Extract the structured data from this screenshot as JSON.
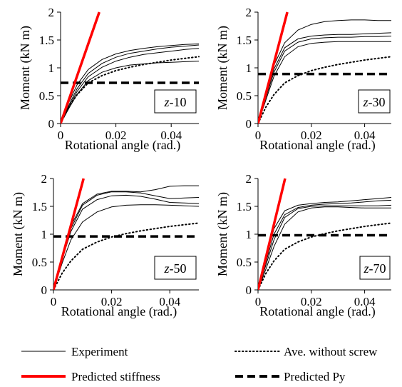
{
  "chart_data": [
    {
      "type": "line",
      "panel_label": "z-10",
      "xlabel": "Rotational angle (rad.)",
      "ylabel": "Moment (kN m)",
      "xlim": [
        0,
        0.05
      ],
      "ylim": [
        0,
        2
      ],
      "x_ticks": [
        "0",
        "0.02",
        "0.04"
      ],
      "y_ticks": [
        "0",
        "0.5",
        "1",
        "1.5",
        "2"
      ],
      "grid": false,
      "predicted_stiffness_slope": 143,
      "predicted_py": 0.73,
      "series": [
        {
          "name": "Experiment",
          "style": "thin",
          "x": [
            0,
            0.003,
            0.006,
            0.01,
            0.015,
            0.02,
            0.025,
            0.03,
            0.035,
            0.04,
            0.045,
            0.05
          ],
          "y": [
            0,
            0.38,
            0.7,
            0.97,
            1.15,
            1.25,
            1.31,
            1.35,
            1.38,
            1.4,
            1.42,
            1.43
          ]
        },
        {
          "name": "Experiment",
          "style": "thin",
          "x": [
            0,
            0.003,
            0.006,
            0.01,
            0.015,
            0.02,
            0.025,
            0.03,
            0.035,
            0.04,
            0.045,
            0.05
          ],
          "y": [
            0,
            0.33,
            0.63,
            0.9,
            1.08,
            1.19,
            1.26,
            1.3,
            1.34,
            1.37,
            1.39,
            1.41
          ]
        },
        {
          "name": "Experiment",
          "style": "thin",
          "x": [
            0,
            0.003,
            0.006,
            0.01,
            0.015,
            0.02,
            0.025,
            0.03,
            0.035,
            0.04,
            0.045,
            0.05
          ],
          "y": [
            0,
            0.3,
            0.58,
            0.84,
            1.01,
            1.12,
            1.19,
            1.24,
            1.27,
            1.3,
            1.33,
            1.35
          ]
        },
        {
          "name": "Experiment",
          "style": "thin",
          "x": [
            0,
            0.003,
            0.006,
            0.01,
            0.015,
            0.02,
            0.025,
            0.03,
            0.035,
            0.04,
            0.045,
            0.05
          ],
          "y": [
            0,
            0.27,
            0.53,
            0.77,
            0.92,
            1.0,
            1.05,
            1.07,
            1.09,
            1.1,
            1.11,
            1.12
          ]
        },
        {
          "name": "Ave. without screw",
          "style": "dotted",
          "x": [
            0,
            0.003,
            0.006,
            0.01,
            0.015,
            0.02,
            0.025,
            0.03,
            0.035,
            0.04,
            0.045,
            0.05
          ],
          "y": [
            0,
            0.3,
            0.52,
            0.73,
            0.86,
            0.95,
            1.01,
            1.06,
            1.1,
            1.14,
            1.17,
            1.2
          ]
        }
      ]
    },
    {
      "type": "line",
      "panel_label": "z-30",
      "xlabel": "Rotational angle (rad.)",
      "ylabel": "Moment (kN m)",
      "xlim": [
        0,
        0.05
      ],
      "ylim": [
        0,
        2
      ],
      "x_ticks": [
        "0",
        "0.02",
        "0.04"
      ],
      "y_ticks": [
        "0",
        "0.5",
        "1",
        "1.5",
        "2"
      ],
      "grid": false,
      "predicted_stiffness_slope": 182,
      "predicted_py": 0.89,
      "series": [
        {
          "name": "Experiment",
          "style": "thin",
          "x": [
            0,
            0.003,
            0.006,
            0.01,
            0.015,
            0.02,
            0.025,
            0.03,
            0.035,
            0.04,
            0.045,
            0.05
          ],
          "y": [
            0,
            0.55,
            1.05,
            1.45,
            1.68,
            1.78,
            1.83,
            1.85,
            1.86,
            1.86,
            1.85,
            1.85
          ]
        },
        {
          "name": "Experiment",
          "style": "thin",
          "x": [
            0,
            0.003,
            0.006,
            0.01,
            0.015,
            0.02,
            0.025,
            0.03,
            0.035,
            0.04,
            0.045,
            0.05
          ],
          "y": [
            0,
            0.5,
            0.98,
            1.36,
            1.52,
            1.57,
            1.59,
            1.6,
            1.6,
            1.61,
            1.62,
            1.63
          ]
        },
        {
          "name": "Experiment",
          "style": "thin",
          "x": [
            0,
            0.003,
            0.006,
            0.01,
            0.015,
            0.02,
            0.025,
            0.03,
            0.035,
            0.04,
            0.045,
            0.05
          ],
          "y": [
            0,
            0.47,
            0.92,
            1.3,
            1.46,
            1.52,
            1.54,
            1.55,
            1.55,
            1.56,
            1.56,
            1.57
          ]
        },
        {
          "name": "Experiment",
          "style": "thin",
          "x": [
            0,
            0.003,
            0.006,
            0.01,
            0.015,
            0.02,
            0.025,
            0.03,
            0.035,
            0.04,
            0.045,
            0.05
          ],
          "y": [
            0,
            0.43,
            0.85,
            1.2,
            1.38,
            1.44,
            1.46,
            1.47,
            1.47,
            1.47,
            1.47,
            1.47
          ]
        },
        {
          "name": "Ave. without screw",
          "style": "dotted",
          "x": [
            0,
            0.003,
            0.006,
            0.01,
            0.015,
            0.02,
            0.025,
            0.03,
            0.035,
            0.04,
            0.045,
            0.05
          ],
          "y": [
            0,
            0.3,
            0.52,
            0.73,
            0.86,
            0.95,
            1.01,
            1.06,
            1.1,
            1.14,
            1.17,
            1.2
          ]
        }
      ]
    },
    {
      "type": "line",
      "panel_label": "z-50",
      "xlabel": "Rotational angle (rad.)",
      "ylabel": "Moment (kN m)",
      "xlim": [
        0,
        0.05
      ],
      "ylim": [
        0,
        2
      ],
      "x_ticks": [
        "0",
        "0.02",
        "0.04"
      ],
      "y_ticks": [
        "0",
        "0.5",
        "1",
        "1.5",
        "2"
      ],
      "grid": false,
      "predicted_stiffness_slope": 193,
      "predicted_py": 0.96,
      "series": [
        {
          "name": "Experiment",
          "style": "thin",
          "x": [
            0,
            0.003,
            0.006,
            0.01,
            0.015,
            0.02,
            0.025,
            0.03,
            0.035,
            0.04,
            0.045,
            0.05
          ],
          "y": [
            0,
            0.6,
            1.15,
            1.55,
            1.72,
            1.77,
            1.77,
            1.76,
            1.8,
            1.86,
            1.87,
            1.87
          ]
        },
        {
          "name": "Experiment",
          "style": "thin",
          "x": [
            0,
            0.003,
            0.006,
            0.01,
            0.015,
            0.02,
            0.025,
            0.03,
            0.035,
            0.04,
            0.045,
            0.05
          ],
          "y": [
            0,
            0.57,
            1.1,
            1.52,
            1.7,
            1.76,
            1.76,
            1.74,
            1.69,
            1.64,
            1.65,
            1.66
          ]
        },
        {
          "name": "Experiment",
          "style": "thin",
          "x": [
            0,
            0.003,
            0.006,
            0.01,
            0.015,
            0.02,
            0.025,
            0.03,
            0.035,
            0.04,
            0.045,
            0.05
          ],
          "y": [
            0,
            0.55,
            1.05,
            1.45,
            1.62,
            1.69,
            1.7,
            1.68,
            1.63,
            1.57,
            1.56,
            1.55
          ]
        },
        {
          "name": "Experiment",
          "style": "thin",
          "x": [
            0,
            0.003,
            0.006,
            0.01,
            0.015,
            0.02,
            0.025,
            0.03,
            0.035,
            0.04,
            0.045,
            0.05
          ],
          "y": [
            0,
            0.48,
            0.9,
            1.22,
            1.4,
            1.49,
            1.52,
            1.53,
            1.53,
            1.52,
            1.51,
            1.5
          ]
        },
        {
          "name": "Ave. without screw",
          "style": "dotted",
          "x": [
            0,
            0.003,
            0.006,
            0.01,
            0.015,
            0.02,
            0.025,
            0.03,
            0.035,
            0.04,
            0.045,
            0.05
          ],
          "y": [
            0,
            0.3,
            0.52,
            0.73,
            0.86,
            0.95,
            1.01,
            1.06,
            1.1,
            1.14,
            1.17,
            1.2
          ]
        }
      ]
    },
    {
      "type": "line",
      "panel_label": "z-70",
      "xlabel": "Rotational angle (rad.)",
      "ylabel": "Moment (kN m)",
      "xlim": [
        0,
        0.05
      ],
      "ylim": [
        0,
        2
      ],
      "x_ticks": [
        "0",
        "0.02",
        "0.04"
      ],
      "y_ticks": [
        "0",
        "0.5",
        "1",
        "1.5",
        "2"
      ],
      "grid": false,
      "predicted_stiffness_slope": 197,
      "predicted_py": 0.98,
      "series": [
        {
          "name": "Experiment",
          "style": "thin",
          "x": [
            0,
            0.003,
            0.006,
            0.01,
            0.015,
            0.02,
            0.025,
            0.03,
            0.035,
            0.04,
            0.045,
            0.05
          ],
          "y": [
            0,
            0.55,
            1.1,
            1.42,
            1.52,
            1.55,
            1.57,
            1.58,
            1.6,
            1.62,
            1.64,
            1.66
          ]
        },
        {
          "name": "Experiment",
          "style": "thin",
          "x": [
            0,
            0.003,
            0.006,
            0.01,
            0.015,
            0.02,
            0.025,
            0.03,
            0.035,
            0.04,
            0.045,
            0.05
          ],
          "y": [
            0,
            0.5,
            1.0,
            1.35,
            1.48,
            1.52,
            1.54,
            1.55,
            1.56,
            1.58,
            1.6,
            1.61
          ]
        },
        {
          "name": "Experiment",
          "style": "thin",
          "x": [
            0,
            0.003,
            0.006,
            0.01,
            0.015,
            0.02,
            0.025,
            0.03,
            0.035,
            0.04,
            0.045,
            0.05
          ],
          "y": [
            0,
            0.45,
            0.9,
            1.3,
            1.46,
            1.5,
            1.51,
            1.51,
            1.51,
            1.51,
            1.51,
            1.52
          ]
        },
        {
          "name": "Experiment",
          "style": "thin",
          "x": [
            0,
            0.003,
            0.006,
            0.01,
            0.015,
            0.02,
            0.025,
            0.03,
            0.035,
            0.04,
            0.045,
            0.05
          ],
          "y": [
            0,
            0.38,
            0.78,
            1.18,
            1.4,
            1.47,
            1.49,
            1.49,
            1.48,
            1.47,
            1.47,
            1.47
          ]
        },
        {
          "name": "Ave. without screw",
          "style": "dotted",
          "x": [
            0,
            0.003,
            0.006,
            0.01,
            0.015,
            0.02,
            0.025,
            0.03,
            0.035,
            0.04,
            0.045,
            0.05
          ],
          "y": [
            0,
            0.3,
            0.52,
            0.73,
            0.86,
            0.95,
            1.01,
            1.06,
            1.1,
            1.14,
            1.17,
            1.2
          ]
        }
      ]
    }
  ],
  "legend": {
    "position": "bottom",
    "items": [
      {
        "label": "Experiment",
        "style": "thin"
      },
      {
        "label": "Ave. without screw",
        "style": "dotted"
      },
      {
        "label": "Predicted stiffness",
        "style": "red-thick"
      },
      {
        "label": "Predicted Py",
        "style": "dashed"
      }
    ]
  },
  "colors": {
    "experiment": "#000000",
    "predicted_stiffness": "#ff0000",
    "predicted_py": "#000000",
    "average": "#000000"
  }
}
